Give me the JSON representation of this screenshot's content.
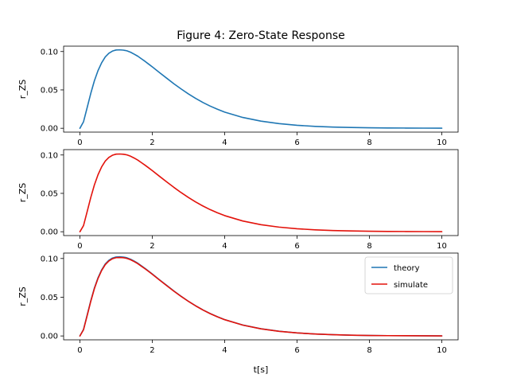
{
  "figure": {
    "title": "Figure 4: Zero-State Response",
    "xlabel": "t[s]"
  },
  "colors": {
    "theory": "#1f77b4",
    "simulate": "#e3120b",
    "axes": "#000000",
    "legend_border": "#cccccc"
  },
  "chart_data": [
    {
      "type": "line",
      "title": "Figure 4: Zero-State Response",
      "xlabel": "",
      "ylabel": "r_ZS",
      "xlim": [
        -0.45,
        10.45
      ],
      "ylim": [
        -0.005,
        0.107
      ],
      "xticks": [
        0,
        2,
        4,
        6,
        8,
        10
      ],
      "xtick_labels": [
        "0",
        "2",
        "4",
        "6",
        "8",
        "10"
      ],
      "yticks": [
        0.0,
        0.05,
        0.1
      ],
      "ytick_labels": [
        "0.00",
        "0.05",
        "0.10"
      ],
      "grid": false,
      "legend": null,
      "series": [
        {
          "name": "",
          "color_key": "theory",
          "x": [
            0,
            0.1,
            0.2,
            0.3,
            0.4,
            0.5,
            0.6,
            0.7,
            0.8,
            0.9,
            1.0,
            1.1,
            1.2,
            1.25,
            1.3,
            1.4,
            1.5,
            1.6,
            1.7,
            1.8,
            1.9,
            2.0,
            2.2,
            2.4,
            2.6,
            2.8,
            3.0,
            3.2,
            3.4,
            3.6,
            3.8,
            4.0,
            4.5,
            5.0,
            5.5,
            6.0,
            6.5,
            7.0,
            7.5,
            8.0,
            8.5,
            9.0,
            9.5,
            10.0
          ],
          "y": [
            0.0,
            0.0085,
            0.0269,
            0.0454,
            0.0619,
            0.0751,
            0.0853,
            0.0929,
            0.0977,
            0.1006,
            0.102,
            0.1022,
            0.1018,
            0.1014,
            0.1009,
            0.0991,
            0.0966,
            0.0939,
            0.0905,
            0.0872,
            0.0836,
            0.08,
            0.0725,
            0.0652,
            0.0579,
            0.0511,
            0.0447,
            0.0389,
            0.0336,
            0.0289,
            0.0248,
            0.0211,
            0.0141,
            0.0093,
            0.0061,
            0.0039,
            0.0025,
            0.0016,
            0.001,
            0.0006,
            0.0004,
            0.0003,
            0.0002,
            0.0001
          ]
        }
      ]
    },
    {
      "type": "line",
      "title": "",
      "xlabel": "",
      "ylabel": "r_ZS",
      "xlim": [
        -0.45,
        10.45
      ],
      "ylim": [
        -0.005,
        0.107
      ],
      "xticks": [
        0,
        2,
        4,
        6,
        8,
        10
      ],
      "xtick_labels": [
        "0",
        "2",
        "4",
        "6",
        "8",
        "10"
      ],
      "yticks": [
        0.0,
        0.05,
        0.1
      ],
      "ytick_labels": [
        "0.00",
        "0.05",
        "0.10"
      ],
      "grid": false,
      "legend": null,
      "series": [
        {
          "name": "",
          "color_key": "simulate",
          "x": [
            0,
            0.1,
            0.2,
            0.3,
            0.4,
            0.5,
            0.6,
            0.7,
            0.8,
            0.9,
            1.0,
            1.1,
            1.2,
            1.25,
            1.3,
            1.4,
            1.5,
            1.6,
            1.7,
            1.8,
            1.9,
            2.0,
            2.2,
            2.4,
            2.6,
            2.8,
            3.0,
            3.2,
            3.4,
            3.6,
            3.8,
            4.0,
            4.5,
            5.0,
            5.5,
            6.0,
            6.5,
            7.0,
            7.5,
            8.0,
            8.5,
            9.0,
            9.5,
            10.0
          ],
          "y": [
            0.0,
            0.008,
            0.0262,
            0.0446,
            0.061,
            0.0742,
            0.0845,
            0.092,
            0.0968,
            0.0997,
            0.1011,
            0.1013,
            0.101,
            0.1006,
            0.1001,
            0.0984,
            0.096,
            0.0933,
            0.09,
            0.0867,
            0.0832,
            0.0796,
            0.0722,
            0.0649,
            0.0577,
            0.0509,
            0.0446,
            0.0388,
            0.0335,
            0.0288,
            0.0247,
            0.021,
            0.014,
            0.0092,
            0.006,
            0.0039,
            0.0025,
            0.0016,
            0.001,
            0.0006,
            0.0004,
            0.0003,
            0.0002,
            0.0001
          ]
        }
      ]
    },
    {
      "type": "line",
      "title": "",
      "xlabel": "t[s]",
      "ylabel": "r_ZS",
      "xlim": [
        -0.45,
        10.45
      ],
      "ylim": [
        -0.005,
        0.107
      ],
      "xticks": [
        0,
        2,
        4,
        6,
        8,
        10
      ],
      "xtick_labels": [
        "0",
        "2",
        "4",
        "6",
        "8",
        "10"
      ],
      "yticks": [
        0.0,
        0.05,
        0.1
      ],
      "ytick_labels": [
        "0.00",
        "0.05",
        "0.10"
      ],
      "grid": false,
      "legend": "upper right",
      "series": [
        {
          "name": "theory",
          "color_key": "theory",
          "x": [
            0,
            0.1,
            0.2,
            0.3,
            0.4,
            0.5,
            0.6,
            0.7,
            0.8,
            0.9,
            1.0,
            1.1,
            1.2,
            1.25,
            1.3,
            1.4,
            1.5,
            1.6,
            1.7,
            1.8,
            1.9,
            2.0,
            2.2,
            2.4,
            2.6,
            2.8,
            3.0,
            3.2,
            3.4,
            3.6,
            3.8,
            4.0,
            4.5,
            5.0,
            5.5,
            6.0,
            6.5,
            7.0,
            7.5,
            8.0,
            8.5,
            9.0,
            9.5,
            10.0
          ],
          "y": [
            0.0,
            0.0085,
            0.0269,
            0.0454,
            0.0619,
            0.0751,
            0.0853,
            0.0929,
            0.0977,
            0.1006,
            0.102,
            0.1022,
            0.1018,
            0.1014,
            0.1009,
            0.0991,
            0.0966,
            0.0939,
            0.0905,
            0.0872,
            0.0836,
            0.08,
            0.0725,
            0.0652,
            0.0579,
            0.0511,
            0.0447,
            0.0389,
            0.0336,
            0.0289,
            0.0248,
            0.0211,
            0.0141,
            0.0093,
            0.0061,
            0.0039,
            0.0025,
            0.0016,
            0.001,
            0.0006,
            0.0004,
            0.0003,
            0.0002,
            0.0001
          ]
        },
        {
          "name": "simulate",
          "color_key": "simulate",
          "x": [
            0,
            0.1,
            0.2,
            0.3,
            0.4,
            0.5,
            0.6,
            0.7,
            0.8,
            0.9,
            1.0,
            1.1,
            1.2,
            1.25,
            1.3,
            1.4,
            1.5,
            1.6,
            1.7,
            1.8,
            1.9,
            2.0,
            2.2,
            2.4,
            2.6,
            2.8,
            3.0,
            3.2,
            3.4,
            3.6,
            3.8,
            4.0,
            4.5,
            5.0,
            5.5,
            6.0,
            6.5,
            7.0,
            7.5,
            8.0,
            8.5,
            9.0,
            9.5,
            10.0
          ],
          "y": [
            0.0,
            0.008,
            0.0262,
            0.0446,
            0.061,
            0.0742,
            0.0845,
            0.092,
            0.0968,
            0.0997,
            0.1011,
            0.1013,
            0.101,
            0.1006,
            0.1001,
            0.0984,
            0.096,
            0.0933,
            0.09,
            0.0867,
            0.0832,
            0.0796,
            0.0722,
            0.0649,
            0.0577,
            0.0509,
            0.0446,
            0.0388,
            0.0335,
            0.0288,
            0.0247,
            0.021,
            0.014,
            0.0092,
            0.006,
            0.0039,
            0.0025,
            0.0016,
            0.001,
            0.0006,
            0.0004,
            0.0003,
            0.0002,
            0.0001
          ]
        }
      ]
    }
  ]
}
